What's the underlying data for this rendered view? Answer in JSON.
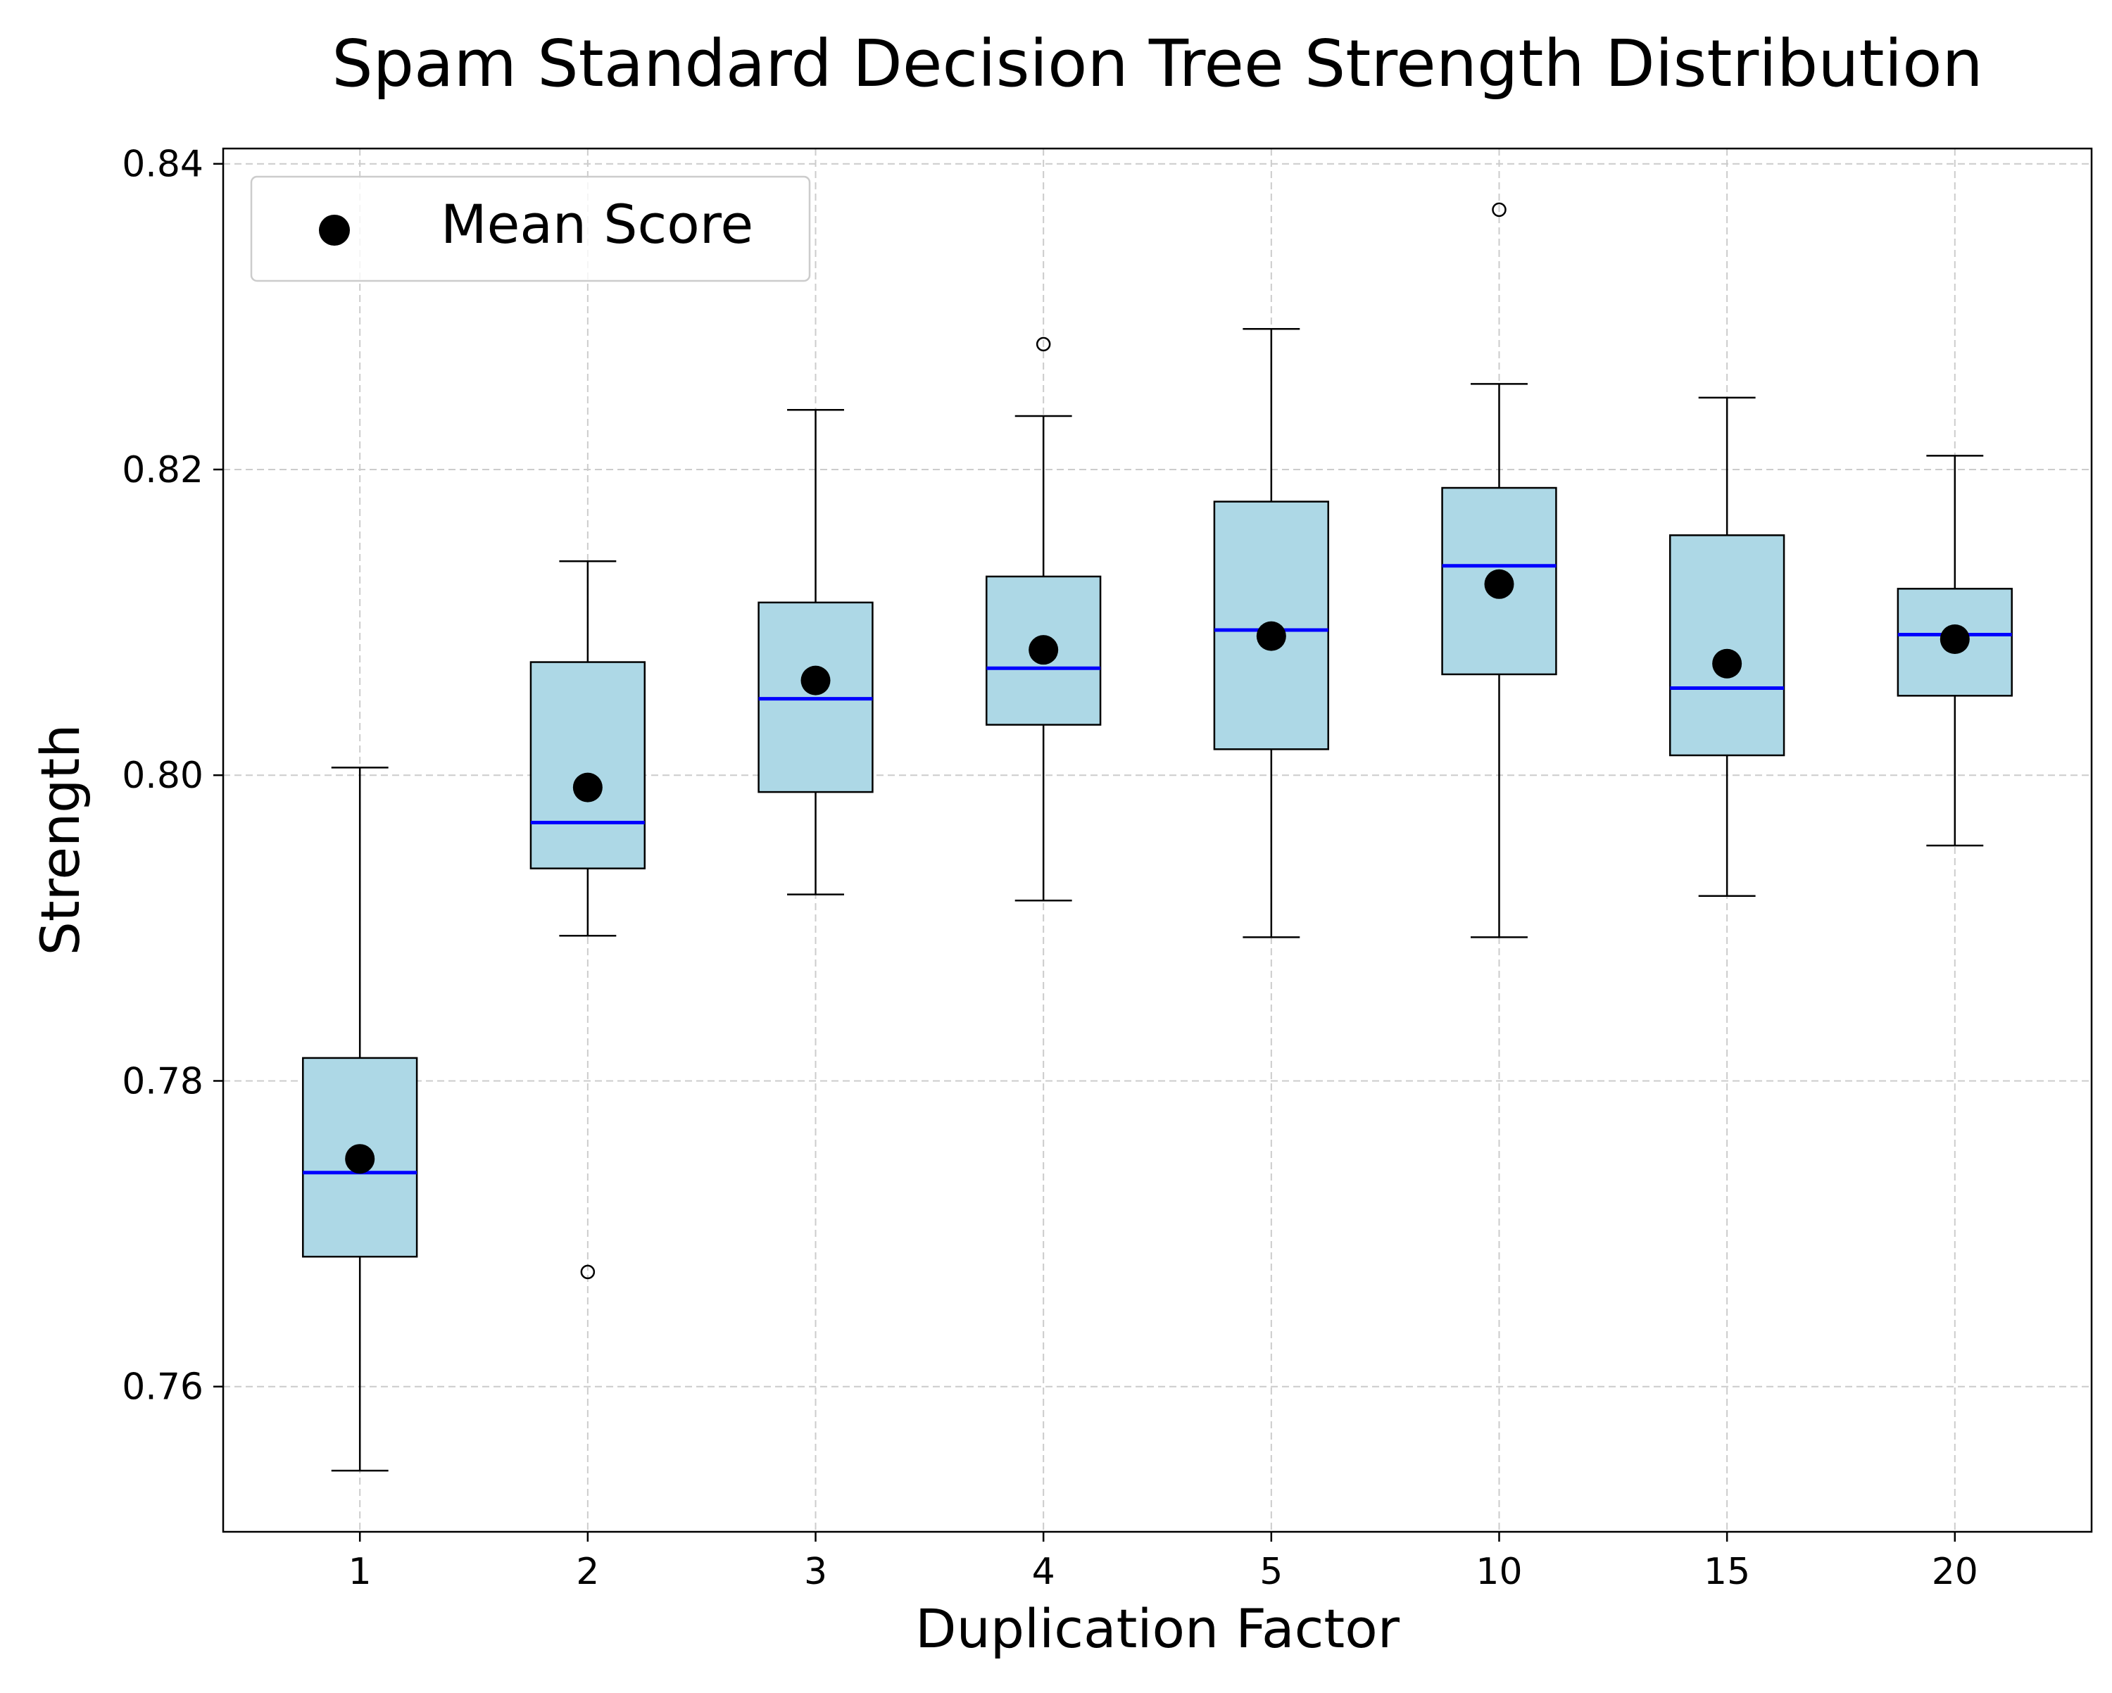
{
  "chart_data": {
    "type": "box",
    "title": "Spam Standard Decision Tree Strength Distribution",
    "xlabel": "Duplication Factor",
    "ylabel": "Strength",
    "ylim": [
      0.7505,
      0.841
    ],
    "yticks": [
      0.76,
      0.78,
      0.8,
      0.82,
      0.84
    ],
    "ytick_labels": [
      "0.76",
      "0.78",
      "0.80",
      "0.82",
      "0.84"
    ],
    "grid": true,
    "legend": {
      "placement": "top-left",
      "entries": [
        {
          "label": "Mean Score",
          "marker": "dot"
        }
      ]
    },
    "categories": [
      "1",
      "2",
      "3",
      "4",
      "5",
      "10",
      "15",
      "20"
    ],
    "boxes": [
      {
        "category": "1",
        "whisker_low": 0.7545,
        "q1": 0.7685,
        "median": 0.774,
        "q3": 0.7815,
        "whisker_high": 0.8005,
        "mean": 0.7749,
        "outliers": []
      },
      {
        "category": "2",
        "whisker_low": 0.7895,
        "q1": 0.7939,
        "median": 0.7969,
        "q3": 0.8074,
        "whisker_high": 0.814,
        "mean": 0.7992,
        "outliers": [
          0.7675
        ]
      },
      {
        "category": "3",
        "whisker_low": 0.7922,
        "q1": 0.7989,
        "median": 0.805,
        "q3": 0.8113,
        "whisker_high": 0.8239,
        "mean": 0.8062,
        "outliers": []
      },
      {
        "category": "4",
        "whisker_low": 0.7918,
        "q1": 0.8033,
        "median": 0.807,
        "q3": 0.813,
        "whisker_high": 0.8235,
        "mean": 0.8082,
        "outliers": [
          0.8282
        ]
      },
      {
        "category": "5",
        "whisker_low": 0.7894,
        "q1": 0.8017,
        "median": 0.8095,
        "q3": 0.8179,
        "whisker_high": 0.8292,
        "mean": 0.8091,
        "outliers": []
      },
      {
        "category": "10",
        "whisker_low": 0.7894,
        "q1": 0.8066,
        "median": 0.8137,
        "q3": 0.8188,
        "whisker_high": 0.8256,
        "mean": 0.8125,
        "outliers": [
          0.837
        ]
      },
      {
        "category": "15",
        "whisker_low": 0.7921,
        "q1": 0.8013,
        "median": 0.8057,
        "q3": 0.8157,
        "whisker_high": 0.8247,
        "mean": 0.8073,
        "outliers": []
      },
      {
        "category": "20",
        "whisker_low": 0.7954,
        "q1": 0.8052,
        "median": 0.8092,
        "q3": 0.8122,
        "whisker_high": 0.8209,
        "mean": 0.8089,
        "outliers": []
      }
    ],
    "colors": {
      "box_fill": "#add8e6",
      "median": "#0000ff",
      "mean": "#000000",
      "grid": "#cccccc",
      "edge": "#000000"
    }
  }
}
